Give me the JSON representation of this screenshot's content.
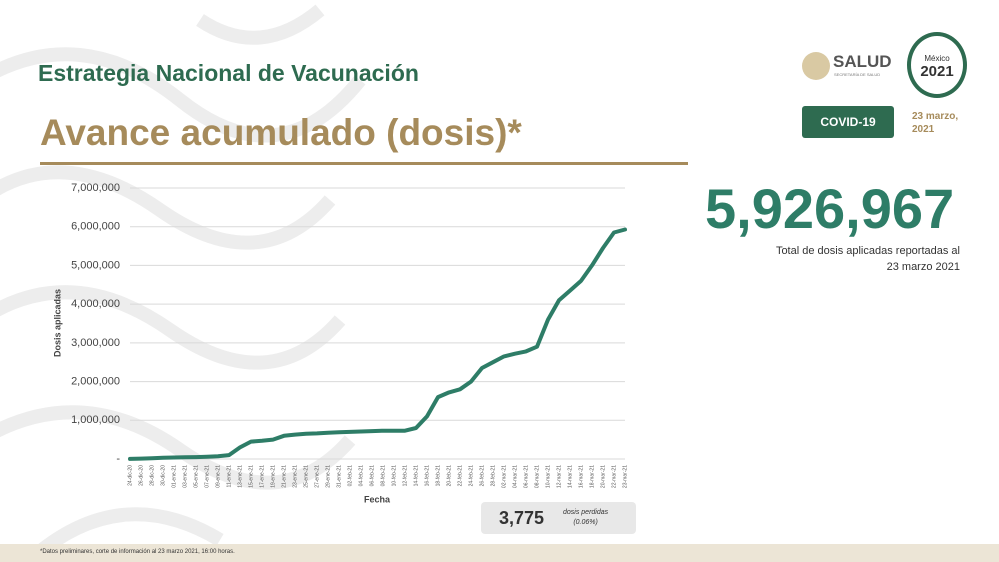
{
  "header": {
    "title": "Estrategia Nacional de Vacunación",
    "subtitle": "Avance acumulado (dosis)*"
  },
  "badge": "COVID-19",
  "date": {
    "line1": "23 marzo,",
    "line2": "2021"
  },
  "logo": {
    "name": "SALUD",
    "sub": "SECRETARÍA DE SALUD",
    "emblem_top": "México",
    "emblem_year": "2021"
  },
  "total": {
    "value": "5,926,967",
    "caption_line1": "Total de dosis aplicadas reportadas al",
    "caption_line2": "23 marzo 2021"
  },
  "lost": {
    "value": "3,775",
    "label_line1": "dosis perdidas",
    "label_line2": "(0.06%)"
  },
  "footnote": "*Datos preliminares, corte de información al 23 marzo 2021, 16:00 horas.",
  "chart_data": {
    "type": "line",
    "x_label": "Fecha",
    "y_label": "Dosis aplicadas",
    "color": "#2e7d67",
    "grid": true,
    "categories": [
      "24-dic-20",
      "26-dic-20",
      "28-dic-20",
      "30-dic-20",
      "01-ene-21",
      "03-ene-21",
      "05-ene-21",
      "07-ene-21",
      "09-ene-21",
      "11-ene-21",
      "13-ene-21",
      "15-ene-21",
      "17-ene-21",
      "19-ene-21",
      "21-ene-21",
      "23-ene-21",
      "25-ene-21",
      "27-ene-21",
      "29-ene-21",
      "31-ene-21",
      "02-feb-21",
      "04-feb-21",
      "06-feb-21",
      "08-feb-21",
      "10-feb-21",
      "12-feb-21",
      "14-feb-21",
      "16-feb-21",
      "18-feb-21",
      "20-feb-21",
      "22-feb-21",
      "24-feb-21",
      "26-feb-21",
      "28-feb-21",
      "02-mar-21",
      "04-mar-21",
      "06-mar-21",
      "08-mar-21",
      "10-mar-21",
      "12-mar-21",
      "14-mar-21",
      "16-mar-21",
      "18-mar-21",
      "20-mar-21",
      "22-mar-21",
      "23-mar-21"
    ],
    "values": [
      3000,
      10000,
      20000,
      30000,
      40000,
      45000,
      50000,
      60000,
      70000,
      100000,
      300000,
      450000,
      470000,
      500000,
      600000,
      630000,
      650000,
      660000,
      680000,
      690000,
      700000,
      710000,
      720000,
      730000,
      730000,
      730000,
      800000,
      1100000,
      1600000,
      1720000,
      1800000,
      2000000,
      2350000,
      2500000,
      2650000,
      2720000,
      2780000,
      2900000,
      3600000,
      4100000,
      4350000,
      4600000,
      5000000,
      5450000,
      5850000,
      5926967
    ],
    "ylim": [
      0,
      7000000
    ],
    "yticks": [
      {
        "value": 0,
        "label": "-"
      },
      {
        "value": 1000000,
        "label": "1,000,000"
      },
      {
        "value": 2000000,
        "label": "2,000,000"
      },
      {
        "value": 3000000,
        "label": "3,000,000"
      },
      {
        "value": 4000000,
        "label": "4,000,000"
      },
      {
        "value": 5000000,
        "label": "5,000,000"
      },
      {
        "value": 6000000,
        "label": "6,000,000"
      },
      {
        "value": 7000000,
        "label": "7,000,000"
      }
    ]
  }
}
